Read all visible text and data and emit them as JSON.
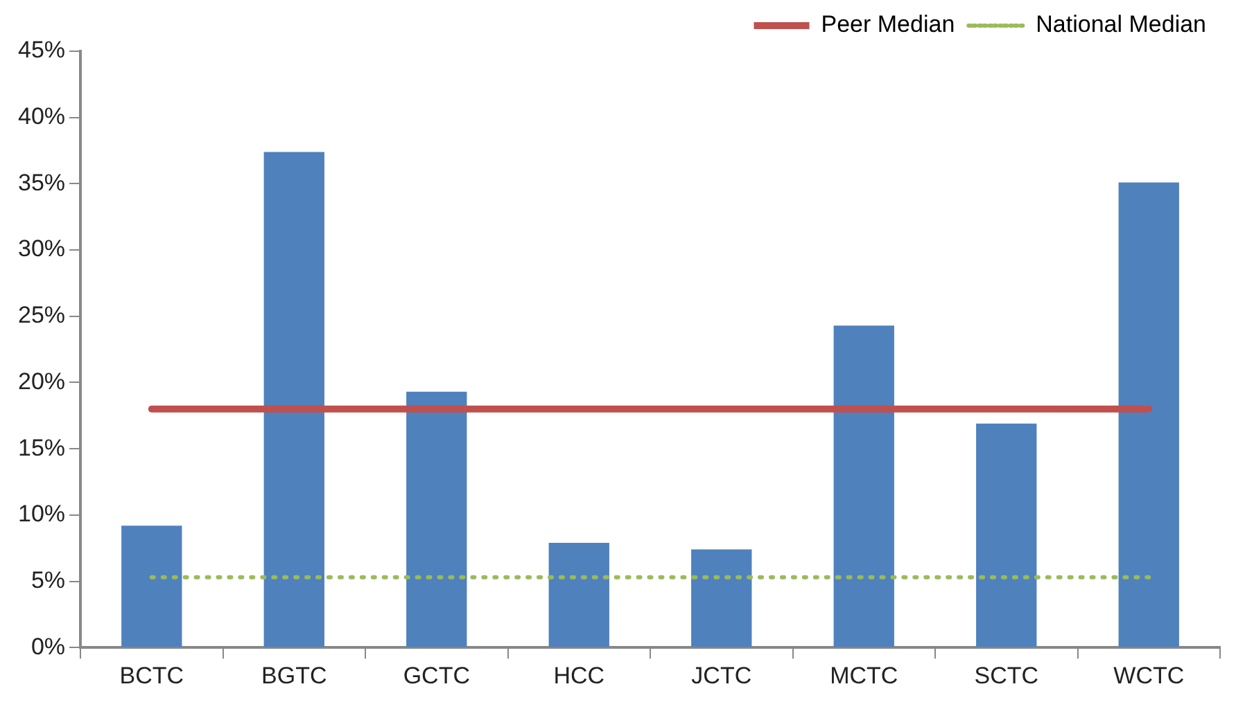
{
  "chart_data": {
    "type": "bar",
    "categories": [
      "BCTC",
      "BGTC",
      "GCTC",
      "HCC",
      "JCTC",
      "MCTC",
      "SCTC",
      "WCTC"
    ],
    "series": [
      {
        "color": "#4f81bd",
        "values": [
          9.2,
          37.4,
          19.3,
          7.9,
          7.4,
          24.3,
          16.9,
          35.1
        ]
      },
      {
        "type": "line",
        "name": "Peer Median",
        "color": "#c0504d",
        "line_style": "solid",
        "values": [
          18,
          18,
          18,
          18,
          18,
          18,
          18,
          18
        ]
      },
      {
        "type": "line",
        "name": "National Median",
        "color": "#9bbb59",
        "line_style": "dotted",
        "values": [
          5.3,
          5.3,
          5.3,
          5.3,
          5.3,
          5.3,
          5.3,
          5.3
        ]
      }
    ],
    "ylim": [
      0,
      45
    ],
    "yticks": [
      {
        "value": 0,
        "label": "0%"
      },
      {
        "value": 5,
        "label": "5%"
      },
      {
        "value": 10,
        "label": "10%"
      },
      {
        "value": 15,
        "label": "15%"
      },
      {
        "value": 20,
        "label": "20%"
      },
      {
        "value": 25,
        "label": "25%"
      },
      {
        "value": 30,
        "label": "30%"
      },
      {
        "value": 35,
        "label": "35%"
      },
      {
        "value": 40,
        "label": "40%"
      },
      {
        "value": 45,
        "label": "45%"
      }
    ],
    "grid": false,
    "legend": "top right",
    "marker": "none"
  }
}
